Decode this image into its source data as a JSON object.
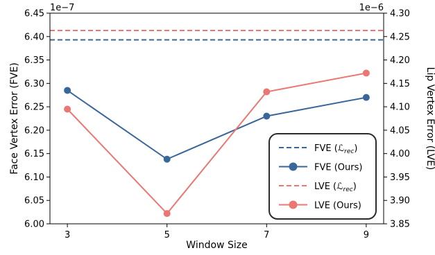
{
  "chart_data": {
    "type": "line",
    "xlabel": "Window Size",
    "x": [
      3,
      5,
      7,
      9
    ],
    "x_ticks": [
      "3",
      "5",
      "7",
      "9"
    ],
    "left_axis": {
      "label": "Face Vertex Error (FVE)",
      "offset_text": "1e−7",
      "range": [
        6.0,
        6.45
      ],
      "ticks": [
        "6.00",
        "6.05",
        "6.10",
        "6.15",
        "6.20",
        "6.25",
        "6.30",
        "6.35",
        "6.40",
        "6.45"
      ]
    },
    "right_axis": {
      "label": "Lip Vertex Error (LVE)",
      "offset_text": "1e−6",
      "range": [
        3.85,
        4.3
      ],
      "ticks": [
        "3.85",
        "3.90",
        "3.95",
        "4.00",
        "4.05",
        "4.10",
        "4.15",
        "4.20",
        "4.25",
        "4.30"
      ]
    },
    "series": [
      {
        "name": "FVE (Ours)",
        "axis": "left",
        "style": "solid-marker",
        "color": "#3a6799",
        "values": [
          6.285,
          6.138,
          6.23,
          6.27
        ]
      },
      {
        "name": "LVE (Ours)",
        "axis": "right",
        "style": "solid-marker",
        "color": "#ea7772",
        "values": [
          4.095,
          3.872,
          4.132,
          4.172
        ]
      }
    ],
    "reference_lines": [
      {
        "name": "FVE",
        "rec_symbol": "ℒrec",
        "axis": "left",
        "style": "dashed",
        "color": "#3a6799",
        "value": 6.393
      },
      {
        "name": "LVE",
        "rec_symbol": "ℒrec",
        "axis": "right",
        "style": "dashed",
        "color": "#ea7772",
        "value": 4.263
      }
    ],
    "legend": {
      "placement": "bottom-right",
      "entries": [
        "FVE (ℒrec)",
        "FVE (Ours)",
        "LVE (ℒrec)",
        "LVE (Ours)"
      ]
    },
    "grid": false
  }
}
